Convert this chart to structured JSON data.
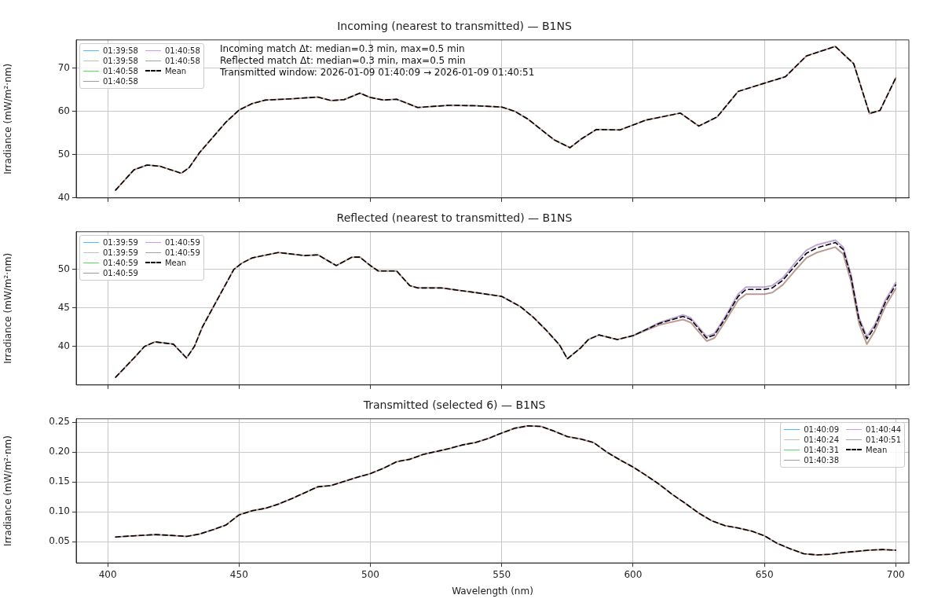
{
  "chart_data": [
    {
      "type": "line",
      "title": "Incoming (nearest to transmitted) — B1NS",
      "ylabel": "Irradiance (mW/m²·nm)",
      "grid": true,
      "legend": "top left",
      "tick_labels": "y",
      "xlim": [
        388,
        705
      ],
      "xticks": [
        400,
        450,
        500,
        550,
        600,
        650,
        700
      ],
      "ylim": [
        40,
        76.5
      ],
      "yticks": [
        40,
        50,
        60,
        70
      ],
      "annotations": [
        "Incoming match Δt: median=0.3 min, max=0.5 min",
        "Reflected match Δt: median=0.3 min, max=0.5 min",
        "Transmitted window: 2026-01-09 01:40:09 → 2026-01-09 01:40:51"
      ],
      "x": [
        403,
        410,
        415,
        420,
        428,
        431,
        435,
        440,
        445,
        450,
        455,
        460,
        470,
        480,
        485,
        490,
        496,
        500,
        505,
        510,
        518,
        530,
        540,
        550,
        555,
        560,
        565,
        570,
        576,
        580,
        586,
        595,
        605,
        618,
        625,
        632,
        640,
        650,
        658,
        666,
        677,
        684,
        690,
        694,
        700
      ],
      "series": [
        {
          "name": "01:39:58",
          "color": "#1f77b4",
          "values": [
            null,
            null,
            null,
            null,
            null,
            null,
            null,
            null,
            null,
            null,
            null,
            null,
            null,
            null,
            null,
            null,
            null,
            null,
            null,
            null,
            null,
            null,
            null,
            null,
            null,
            null,
            null,
            null,
            null,
            null,
            null,
            null,
            null,
            null,
            null,
            null,
            null,
            null,
            null,
            null,
            null,
            null,
            null,
            null,
            null
          ]
        },
        {
          "name": "01:39:58",
          "color": "#ff7f0e",
          "values": [
            null,
            null,
            null,
            null,
            null,
            null,
            null,
            null,
            null,
            null,
            null,
            null,
            null,
            null,
            null,
            null,
            null,
            null,
            null,
            null,
            null,
            null,
            null,
            null,
            null,
            null,
            null,
            null,
            null,
            null,
            null,
            null,
            null,
            null,
            null,
            null,
            null,
            null,
            null,
            null,
            null,
            null,
            null,
            null,
            null
          ]
        },
        {
          "name": "01:40:58",
          "color": "#2ca02c",
          "values": [
            null,
            null,
            null,
            null,
            null,
            null,
            null,
            null,
            null,
            null,
            null,
            null,
            null,
            null,
            null,
            null,
            null,
            null,
            null,
            null,
            null,
            null,
            null,
            null,
            null,
            null,
            null,
            null,
            null,
            null,
            null,
            null,
            null,
            null,
            null,
            null,
            null,
            null,
            null,
            null,
            null,
            null,
            null,
            null,
            null
          ]
        },
        {
          "name": "01:40:58",
          "color": "#d62728",
          "values": [
            null,
            null,
            null,
            null,
            null,
            null,
            null,
            null,
            null,
            null,
            null,
            null,
            null,
            null,
            null,
            null,
            null,
            null,
            null,
            null,
            null,
            null,
            null,
            null,
            null,
            null,
            null,
            null,
            null,
            null,
            null,
            null,
            null,
            null,
            null,
            null,
            null,
            null,
            null,
            null,
            null,
            null,
            null,
            null,
            null
          ]
        },
        {
          "name": "01:40:58",
          "color": "#9467bd",
          "values": [
            null,
            null,
            null,
            null,
            null,
            null,
            null,
            null,
            null,
            null,
            null,
            null,
            null,
            null,
            null,
            null,
            null,
            null,
            null,
            null,
            null,
            null,
            null,
            null,
            null,
            null,
            null,
            null,
            null,
            null,
            null,
            null,
            null,
            null,
            null,
            null,
            null,
            null,
            null,
            null,
            null,
            null,
            null,
            null,
            null
          ]
        },
        {
          "name": "01:40:58",
          "color": "#8c564b",
          "values": [
            41.8,
            46.5,
            47.6,
            47.3,
            45.7,
            47,
            50.5,
            54,
            57.5,
            60.3,
            61.8,
            62.6,
            62.9,
            63.3,
            62.5,
            62.7,
            64.2,
            63.2,
            62.6,
            62.8,
            60.9,
            61.4,
            61.3,
            61,
            60,
            58.2,
            55.8,
            53.4,
            51.6,
            53.5,
            55.8,
            55.7,
            58,
            59.6,
            56.6,
            58.7,
            64.6,
            66.5,
            68,
            72.8,
            75,
            71,
            59.5,
            60.2,
            67.7
          ]
        },
        {
          "name": "Mean",
          "color": "#000000",
          "line_style": "dashed",
          "values": [
            41.8,
            46.5,
            47.6,
            47.3,
            45.7,
            47,
            50.5,
            54,
            57.5,
            60.3,
            61.8,
            62.6,
            62.9,
            63.3,
            62.5,
            62.7,
            64.2,
            63.2,
            62.6,
            62.8,
            60.9,
            61.4,
            61.3,
            61,
            60,
            58.2,
            55.8,
            53.4,
            51.6,
            53.5,
            55.8,
            55.7,
            58,
            59.6,
            56.6,
            58.7,
            64.6,
            66.5,
            68,
            72.8,
            75,
            71,
            59.5,
            60.2,
            67.7
          ]
        }
      ]
    },
    {
      "type": "line",
      "title": "Reflected (nearest to transmitted) — B1NS",
      "ylabel": "Irradiance (mW/m²·nm)",
      "grid": true,
      "legend": "top left",
      "tick_labels": "y",
      "xlim": [
        388,
        705
      ],
      "xticks": [
        400,
        450,
        500,
        550,
        600,
        650,
        700
      ],
      "ylim": [
        35,
        54.9
      ],
      "yticks": [
        40,
        45,
        50
      ],
      "x": [
        403,
        410,
        414,
        418,
        425,
        430,
        433,
        436,
        440,
        444,
        448,
        451,
        455,
        465,
        475,
        480,
        487,
        493,
        496,
        500,
        503,
        510,
        515,
        518,
        527,
        540,
        550,
        557,
        562,
        567,
        572,
        575,
        580,
        583,
        587,
        594,
        600,
        610,
        619,
        622,
        628,
        631,
        635,
        640,
        643,
        650,
        653,
        657,
        662,
        666,
        670,
        677,
        680,
        683,
        686,
        689,
        692,
        696,
        700
      ],
      "series": [
        {
          "name": "01:39:59",
          "color": "#1f77b4",
          "values": [
            null,
            null,
            null,
            null,
            null,
            null,
            null,
            null,
            null,
            null,
            null,
            null,
            null,
            null,
            null,
            null,
            null,
            null,
            null,
            null,
            null,
            null,
            null,
            null,
            null,
            null,
            null,
            null,
            null,
            null,
            null,
            null,
            null,
            null,
            null,
            null,
            null,
            null,
            null,
            null,
            null,
            null,
            null,
            null,
            null,
            null,
            null,
            null,
            null,
            null,
            null,
            null,
            null,
            null,
            null,
            null,
            null,
            null,
            null
          ]
        },
        {
          "name": "01:39:59",
          "color": "#ff7f0e",
          "values": [
            null,
            null,
            null,
            null,
            null,
            null,
            null,
            null,
            null,
            null,
            null,
            null,
            null,
            null,
            null,
            null,
            null,
            null,
            null,
            null,
            null,
            null,
            null,
            null,
            null,
            null,
            null,
            null,
            null,
            null,
            null,
            null,
            null,
            null,
            null,
            null,
            null,
            null,
            null,
            null,
            null,
            null,
            null,
            null,
            null,
            null,
            null,
            null,
            null,
            null,
            null,
            null,
            null,
            null,
            null,
            null,
            null,
            null,
            null
          ]
        },
        {
          "name": "01:40:59",
          "color": "#2ca02c",
          "values": [
            null,
            null,
            null,
            null,
            null,
            null,
            null,
            null,
            null,
            null,
            null,
            null,
            null,
            null,
            null,
            null,
            null,
            null,
            null,
            null,
            null,
            null,
            null,
            null,
            null,
            null,
            null,
            null,
            null,
            null,
            null,
            null,
            null,
            null,
            null,
            null,
            null,
            null,
            null,
            null,
            null,
            null,
            null,
            null,
            null,
            null,
            null,
            null,
            null,
            null,
            null,
            null,
            null,
            null,
            null,
            null,
            null,
            null,
            null
          ]
        },
        {
          "name": "01:40:59",
          "color": "#d62728",
          "values": [
            null,
            null,
            null,
            null,
            null,
            null,
            null,
            null,
            null,
            null,
            null,
            null,
            null,
            null,
            null,
            null,
            null,
            null,
            null,
            null,
            null,
            null,
            null,
            null,
            null,
            null,
            null,
            null,
            null,
            null,
            null,
            null,
            null,
            null,
            null,
            null,
            null,
            null,
            null,
            null,
            null,
            null,
            null,
            null,
            null,
            null,
            null,
            null,
            null,
            null,
            null,
            null,
            null,
            null,
            null,
            null,
            null,
            null,
            null
          ]
        },
        {
          "name": "01:40:59",
          "color": "#9467bd",
          "values": [
            null,
            null,
            null,
            null,
            null,
            null,
            null,
            null,
            null,
            null,
            null,
            null,
            null,
            null,
            null,
            null,
            null,
            null,
            null,
            null,
            null,
            null,
            null,
            null,
            null,
            null,
            null,
            null,
            null,
            null,
            null,
            null,
            null,
            null,
            null,
            null,
            41.4,
            43.1,
            44.1,
            43.7,
            41.3,
            41.7,
            43.8,
            46.8,
            47.7,
            47.7,
            47.9,
            48.9,
            51,
            52.5,
            53.2,
            53.8,
            52.9,
            49.3,
            43.8,
            41.3,
            42.8,
            46,
            48.3
          ]
        },
        {
          "name": "01:40:59",
          "color": "#8c564b",
          "values": [
            36,
            38.5,
            40,
            40.6,
            40.3,
            38.5,
            40,
            42.5,
            45,
            47.5,
            50,
            50.8,
            51.5,
            52.2,
            51.8,
            51.9,
            50.5,
            51.6,
            51.6,
            50.5,
            49.8,
            49.8,
            47.9,
            47.6,
            47.6,
            47,
            46.5,
            45.2,
            43.8,
            42.1,
            40.2,
            38.4,
            39.8,
            40.9,
            41.5,
            40.9,
            41.4,
            42.8,
            43.5,
            43.1,
            40.7,
            41.1,
            43.2,
            46,
            46.8,
            46.8,
            47,
            48,
            50,
            51.5,
            52.2,
            52.9,
            52,
            48.4,
            43,
            40.3,
            42,
            45.2,
            47.5
          ]
        },
        {
          "name": "Mean",
          "color": "#000000",
          "line_style": "dashed",
          "values": [
            36,
            38.5,
            40,
            40.6,
            40.3,
            38.5,
            40,
            42.5,
            45,
            47.5,
            50,
            50.8,
            51.5,
            52.2,
            51.8,
            51.9,
            50.5,
            51.6,
            51.6,
            50.5,
            49.8,
            49.8,
            47.9,
            47.6,
            47.6,
            47,
            46.5,
            45.2,
            43.8,
            42.1,
            40.2,
            38.4,
            39.8,
            40.9,
            41.5,
            40.9,
            41.4,
            43,
            43.9,
            43.5,
            41.1,
            41.5,
            43.6,
            46.5,
            47.4,
            47.4,
            47.6,
            48.6,
            50.6,
            52.1,
            52.8,
            53.5,
            52.6,
            49,
            43.5,
            41,
            42.5,
            45.7,
            48
          ]
        }
      ]
    },
    {
      "type": "line",
      "title": "Transmitted (selected 6) — B1NS",
      "xlabel": "Wavelength (nm)",
      "ylabel": "Irradiance (mW/m²·nm)",
      "grid": true,
      "legend": "top right",
      "xlim": [
        388,
        705
      ],
      "xticks": [
        400,
        450,
        500,
        550,
        600,
        650,
        700
      ],
      "ylim": [
        0.0146,
        0.2558
      ],
      "yticks": [
        {
          "value": 0.05,
          "label": "0.05"
        },
        {
          "value": 0.1,
          "label": "0.10"
        },
        {
          "value": 0.15,
          "label": "0.15"
        },
        {
          "value": 0.2,
          "label": "0.20"
        },
        {
          "value": 0.25,
          "label": "0.25"
        }
      ],
      "x": [
        403,
        410,
        418,
        423,
        430,
        435,
        440,
        445,
        450,
        455,
        460,
        465,
        470,
        475,
        480,
        485,
        490,
        495,
        500,
        505,
        510,
        515,
        520,
        525,
        530,
        535,
        540,
        545,
        550,
        555,
        560,
        565,
        570,
        575,
        580,
        585,
        590,
        595,
        600,
        605,
        610,
        615,
        620,
        625,
        630,
        635,
        640,
        645,
        650,
        655,
        660,
        665,
        670,
        675,
        680,
        685,
        690,
        695,
        700
      ],
      "series": [
        {
          "name": "01:40:09",
          "color": "#1f77b4",
          "values": [
            null,
            null,
            null,
            null,
            null,
            null,
            null,
            null,
            null,
            null,
            null,
            null,
            null,
            null,
            null,
            null,
            null,
            null,
            null,
            null,
            null,
            null,
            null,
            null,
            null,
            null,
            null,
            null,
            null,
            null,
            null,
            null,
            null,
            null,
            null,
            null,
            null,
            null,
            null,
            null,
            null,
            null,
            null,
            null,
            null,
            null,
            null,
            null,
            null,
            null,
            null,
            null,
            null,
            null,
            null,
            null,
            null,
            null,
            null
          ]
        },
        {
          "name": "01:40:24",
          "color": "#ff7f0e",
          "values": [
            null,
            null,
            null,
            null,
            null,
            null,
            null,
            null,
            null,
            null,
            null,
            null,
            null,
            null,
            null,
            null,
            null,
            null,
            null,
            null,
            null,
            null,
            null,
            null,
            null,
            null,
            null,
            null,
            null,
            null,
            null,
            null,
            null,
            null,
            null,
            null,
            null,
            null,
            null,
            null,
            null,
            null,
            null,
            null,
            null,
            null,
            null,
            null,
            null,
            null,
            null,
            null,
            null,
            null,
            null,
            null,
            null,
            null,
            null
          ]
        },
        {
          "name": "01:40:31",
          "color": "#2ca02c",
          "values": [
            null,
            null,
            null,
            null,
            null,
            null,
            null,
            null,
            null,
            null,
            null,
            null,
            null,
            null,
            null,
            null,
            null,
            null,
            null,
            null,
            null,
            null,
            null,
            null,
            null,
            null,
            null,
            null,
            null,
            null,
            null,
            null,
            null,
            null,
            null,
            null,
            null,
            null,
            null,
            null,
            null,
            null,
            null,
            null,
            null,
            null,
            null,
            null,
            null,
            null,
            null,
            null,
            null,
            null,
            null,
            null,
            null,
            null,
            null
          ]
        },
        {
          "name": "01:40:38",
          "color": "#d62728",
          "values": [
            null,
            null,
            null,
            null,
            null,
            null,
            null,
            null,
            null,
            null,
            null,
            null,
            null,
            null,
            null,
            null,
            null,
            null,
            null,
            null,
            null,
            null,
            null,
            null,
            null,
            null,
            null,
            null,
            null,
            null,
            null,
            null,
            null,
            null,
            null,
            null,
            null,
            null,
            null,
            null,
            null,
            null,
            null,
            null,
            null,
            null,
            null,
            null,
            null,
            null,
            null,
            null,
            null,
            null,
            null,
            null,
            null,
            null,
            null
          ]
        },
        {
          "name": "01:40:44",
          "color": "#9467bd",
          "values": [
            null,
            null,
            null,
            null,
            null,
            null,
            null,
            null,
            null,
            null,
            null,
            null,
            null,
            null,
            null,
            null,
            null,
            null,
            null,
            null,
            null,
            null,
            null,
            null,
            null,
            null,
            null,
            null,
            null,
            null,
            null,
            null,
            null,
            null,
            null,
            null,
            null,
            null,
            null,
            null,
            null,
            null,
            null,
            null,
            null,
            null,
            null,
            null,
            null,
            null,
            null,
            null,
            null,
            null,
            null,
            null,
            null,
            null,
            null
          ]
        },
        {
          "name": "01:40:51",
          "color": "#8c564b",
          "values": [
            0.058,
            0.06,
            0.062,
            0.061,
            0.059,
            0.063,
            0.07,
            0.078,
            0.095,
            0.102,
            0.106,
            0.113,
            0.122,
            0.132,
            0.142,
            0.144,
            0.151,
            0.158,
            0.164,
            0.173,
            0.184,
            0.188,
            0.196,
            0.201,
            0.206,
            0.212,
            0.216,
            0.223,
            0.232,
            0.24,
            0.244,
            0.243,
            0.235,
            0.226,
            0.222,
            0.216,
            0.2,
            0.187,
            0.175,
            0.161,
            0.146,
            0.129,
            0.114,
            0.098,
            0.085,
            0.077,
            0.073,
            0.068,
            0.06,
            0.047,
            0.038,
            0.03,
            0.028,
            0.029,
            0.032,
            0.034,
            0.036,
            0.037,
            0.036
          ]
        },
        {
          "name": "Mean",
          "color": "#000000",
          "line_style": "dashed",
          "values": [
            0.058,
            0.06,
            0.062,
            0.061,
            0.059,
            0.063,
            0.07,
            0.078,
            0.095,
            0.102,
            0.106,
            0.113,
            0.122,
            0.132,
            0.142,
            0.144,
            0.151,
            0.158,
            0.164,
            0.173,
            0.184,
            0.188,
            0.196,
            0.201,
            0.206,
            0.212,
            0.216,
            0.223,
            0.232,
            0.24,
            0.244,
            0.243,
            0.235,
            0.226,
            0.222,
            0.216,
            0.2,
            0.187,
            0.175,
            0.161,
            0.146,
            0.129,
            0.114,
            0.098,
            0.085,
            0.077,
            0.073,
            0.068,
            0.06,
            0.047,
            0.038,
            0.03,
            0.028,
            0.029,
            0.032,
            0.034,
            0.036,
            0.037,
            0.036
          ]
        }
      ]
    }
  ]
}
